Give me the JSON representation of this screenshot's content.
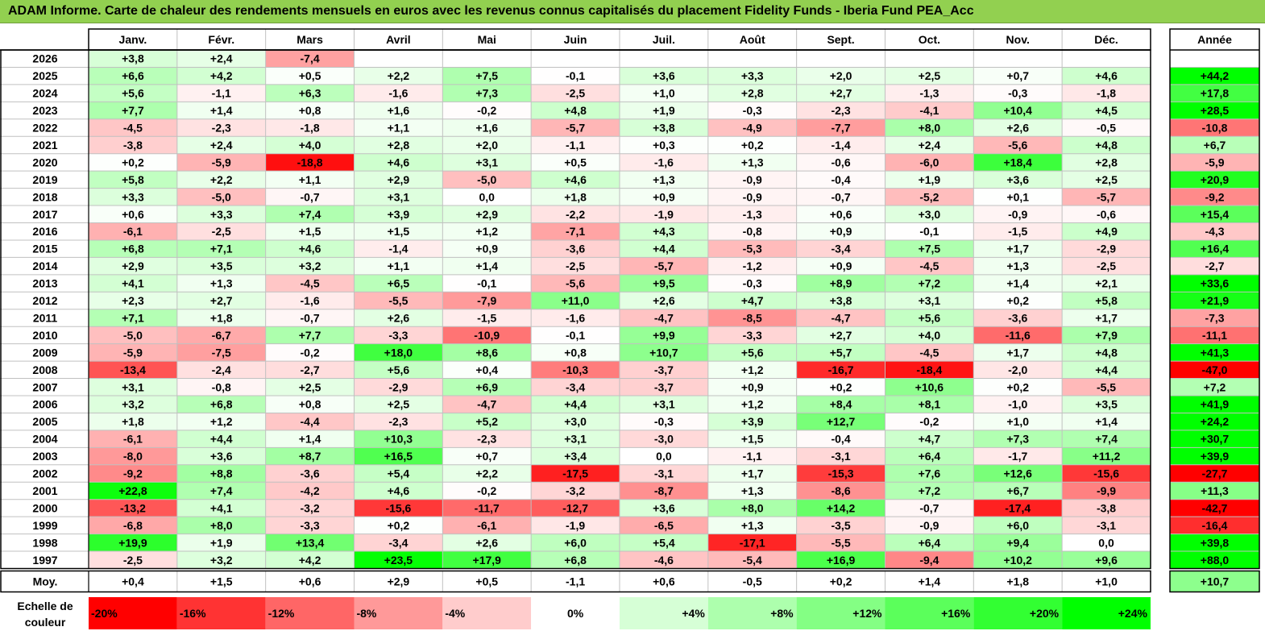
{
  "title": "ADAM Informe. Carte de chaleur des rendements mensuels en euros avec les revenus connus capitalisés du placement Fidelity Funds - Iberia Fund PEA_Acc",
  "chart_data": {
    "type": "heatmap",
    "columns": [
      "Janv.",
      "Févr.",
      "Mars",
      "Avril",
      "Mai",
      "Juin",
      "Juil.",
      "Août",
      "Sept.",
      "Oct.",
      "Nov.",
      "Déc."
    ],
    "annual_header": "Année",
    "rows": [
      {
        "year": "2026",
        "months": [
          "+3,8",
          "+2,4",
          "-7,4",
          "",
          "",
          "",
          "",
          "",
          "",
          "",
          "",
          ""
        ],
        "annual": ""
      },
      {
        "year": "2025",
        "months": [
          "+6,6",
          "+4,2",
          "+0,5",
          "+2,2",
          "+7,5",
          "-0,1",
          "+3,6",
          "+3,3",
          "+2,0",
          "+2,5",
          "+0,7",
          "+4,6"
        ],
        "annual": "+44,2"
      },
      {
        "year": "2024",
        "months": [
          "+5,6",
          "-1,1",
          "+6,3",
          "-1,6",
          "+7,3",
          "-2,5",
          "+1,0",
          "+2,8",
          "+2,7",
          "-1,3",
          "-0,3",
          "-1,8"
        ],
        "annual": "+17,8"
      },
      {
        "year": "2023",
        "months": [
          "+7,7",
          "+1,4",
          "+0,8",
          "+1,6",
          "-0,2",
          "+4,8",
          "+1,9",
          "-0,3",
          "-2,3",
          "-4,1",
          "+10,4",
          "+4,5"
        ],
        "annual": "+28,5"
      },
      {
        "year": "2022",
        "months": [
          "-4,5",
          "-2,3",
          "-1,8",
          "+1,1",
          "+1,6",
          "-5,7",
          "+3,8",
          "-4,9",
          "-7,7",
          "+8,0",
          "+2,6",
          "-0,5"
        ],
        "annual": "-10,8"
      },
      {
        "year": "2021",
        "months": [
          "-3,8",
          "+2,4",
          "+4,0",
          "+2,8",
          "+2,0",
          "-1,1",
          "+0,3",
          "+0,2",
          "-1,4",
          "+2,4",
          "-5,6",
          "+4,8"
        ],
        "annual": "+6,7"
      },
      {
        "year": "2020",
        "months": [
          "+0,2",
          "-5,9",
          "-18,8",
          "+4,6",
          "+3,1",
          "+0,5",
          "-1,6",
          "+1,3",
          "-0,6",
          "-6,0",
          "+18,4",
          "+2,8"
        ],
        "annual": "-5,9"
      },
      {
        "year": "2019",
        "months": [
          "+5,8",
          "+2,2",
          "+1,1",
          "+2,9",
          "-5,0",
          "+4,6",
          "+1,3",
          "-0,9",
          "-0,4",
          "+1,9",
          "+3,6",
          "+2,5"
        ],
        "annual": "+20,9"
      },
      {
        "year": "2018",
        "months": [
          "+3,3",
          "-5,0",
          "-0,7",
          "+3,1",
          "0,0",
          "+1,8",
          "+0,9",
          "-0,9",
          "-0,7",
          "-5,2",
          "+0,1",
          "-5,7"
        ],
        "annual": "-9,2"
      },
      {
        "year": "2017",
        "months": [
          "+0,6",
          "+3,3",
          "+7,4",
          "+3,9",
          "+2,9",
          "-2,2",
          "-1,9",
          "-1,3",
          "+0,6",
          "+3,0",
          "-0,9",
          "-0,6"
        ],
        "annual": "+15,4"
      },
      {
        "year": "2016",
        "months": [
          "-6,1",
          "-2,5",
          "+1,5",
          "+1,5",
          "+1,2",
          "-7,1",
          "+4,3",
          "-0,8",
          "+0,9",
          "-0,1",
          "-1,5",
          "+4,9"
        ],
        "annual": "-4,3"
      },
      {
        "year": "2015",
        "months": [
          "+6,8",
          "+7,1",
          "+4,6",
          "-1,4",
          "+0,9",
          "-3,6",
          "+4,4",
          "-5,3",
          "-3,4",
          "+7,5",
          "+1,7",
          "-2,9"
        ],
        "annual": "+16,4"
      },
      {
        "year": "2014",
        "months": [
          "+2,9",
          "+3,5",
          "+3,2",
          "+1,1",
          "+1,4",
          "-2,5",
          "-5,7",
          "-1,2",
          "+0,9",
          "-4,5",
          "+1,3",
          "-2,5"
        ],
        "annual": "-2,7"
      },
      {
        "year": "2013",
        "months": [
          "+4,1",
          "+1,3",
          "-4,5",
          "+6,5",
          "-0,1",
          "-5,6",
          "+9,5",
          "-0,3",
          "+8,9",
          "+7,2",
          "+1,4",
          "+2,1"
        ],
        "annual": "+33,6"
      },
      {
        "year": "2012",
        "months": [
          "+2,3",
          "+2,7",
          "-1,6",
          "-5,5",
          "-7,9",
          "+11,0",
          "+2,6",
          "+4,7",
          "+3,8",
          "+3,1",
          "+0,2",
          "+5,8"
        ],
        "annual": "+21,9"
      },
      {
        "year": "2011",
        "months": [
          "+7,1",
          "+1,8",
          "-0,7",
          "+2,6",
          "-1,5",
          "-1,6",
          "-4,7",
          "-8,5",
          "-4,7",
          "+5,6",
          "-3,6",
          "+1,7"
        ],
        "annual": "-7,3"
      },
      {
        "year": "2010",
        "months": [
          "-5,0",
          "-6,7",
          "+7,7",
          "-3,3",
          "-10,9",
          "-0,1",
          "+9,9",
          "-3,3",
          "+2,7",
          "+4,0",
          "-11,6",
          "+7,9"
        ],
        "annual": "-11,1"
      },
      {
        "year": "2009",
        "months": [
          "-5,9",
          "-7,5",
          "-0,2",
          "+18,0",
          "+8,6",
          "+0,8",
          "+10,7",
          "+5,6",
          "+5,7",
          "-4,5",
          "+1,7",
          "+4,8"
        ],
        "annual": "+41,3"
      },
      {
        "year": "2008",
        "months": [
          "-13,4",
          "-2,4",
          "-2,7",
          "+5,6",
          "+0,4",
          "-10,3",
          "-3,7",
          "+1,2",
          "-16,7",
          "-18,4",
          "-2,0",
          "+4,4"
        ],
        "annual": "-47,0"
      },
      {
        "year": "2007",
        "months": [
          "+3,1",
          "-0,8",
          "+2,5",
          "-2,9",
          "+6,9",
          "-3,4",
          "-3,7",
          "+0,9",
          "+0,2",
          "+10,6",
          "+0,2",
          "-5,5"
        ],
        "annual": "+7,2"
      },
      {
        "year": "2006",
        "months": [
          "+3,2",
          "+6,8",
          "+0,8",
          "+2,5",
          "-4,7",
          "+4,4",
          "+3,1",
          "+1,2",
          "+8,4",
          "+8,1",
          "-1,0",
          "+3,5"
        ],
        "annual": "+41,9"
      },
      {
        "year": "2005",
        "months": [
          "+1,8",
          "+1,2",
          "-4,4",
          "-2,3",
          "+5,2",
          "+3,0",
          "-0,3",
          "+3,9",
          "+12,7",
          "-0,2",
          "+1,0",
          "+1,4"
        ],
        "annual": "+24,2"
      },
      {
        "year": "2004",
        "months": [
          "-6,1",
          "+4,4",
          "+1,4",
          "+10,3",
          "-2,3",
          "+3,1",
          "-3,0",
          "+1,5",
          "-0,4",
          "+4,7",
          "+7,3",
          "+7,4"
        ],
        "annual": "+30,7"
      },
      {
        "year": "2003",
        "months": [
          "-8,0",
          "+3,6",
          "+8,7",
          "+16,5",
          "+0,7",
          "+3,4",
          "0,0",
          "-1,1",
          "-3,1",
          "+6,4",
          "-1,7",
          "+11,2"
        ],
        "annual": "+39,9"
      },
      {
        "year": "2002",
        "months": [
          "-9,2",
          "+8,8",
          "-3,6",
          "+5,4",
          "+2,2",
          "-17,5",
          "-3,1",
          "+1,7",
          "-15,3",
          "+7,6",
          "+12,6",
          "-15,6"
        ],
        "annual": "-27,7"
      },
      {
        "year": "2001",
        "months": [
          "+22,8",
          "+7,4",
          "-4,2",
          "+4,6",
          "-0,2",
          "-3,2",
          "-8,7",
          "+1,3",
          "-8,6",
          "+7,2",
          "+6,7",
          "-9,9"
        ],
        "annual": "+11,3"
      },
      {
        "year": "2000",
        "months": [
          "-13,2",
          "+4,1",
          "-3,2",
          "-15,6",
          "-11,7",
          "-12,7",
          "+3,6",
          "+8,0",
          "+14,2",
          "-0,7",
          "-17,4",
          "-3,8"
        ],
        "annual": "-42,7"
      },
      {
        "year": "1999",
        "months": [
          "-6,8",
          "+8,0",
          "-3,3",
          "+0,2",
          "-6,1",
          "-1,9",
          "-6,5",
          "+1,3",
          "-3,5",
          "-0,9",
          "+6,0",
          "-3,1"
        ],
        "annual": "-16,4"
      },
      {
        "year": "1998",
        "months": [
          "+19,9",
          "+1,9",
          "+13,4",
          "-3,4",
          "+2,6",
          "+6,0",
          "+5,4",
          "-17,1",
          "-5,5",
          "+6,4",
          "+9,4",
          "0,0"
        ],
        "annual": "+39,8"
      },
      {
        "year": "1997",
        "months": [
          "-2,5",
          "+3,2",
          "+4,2",
          "+23,5",
          "+17,9",
          "+6,8",
          "-4,6",
          "-5,4",
          "+16,9",
          "-9,4",
          "+10,2",
          "+9,6"
        ],
        "annual": "+88,0"
      }
    ],
    "average": {
      "label": "Moy.",
      "months": [
        "+0,4",
        "+1,5",
        "+0,6",
        "+2,9",
        "+0,5",
        "-1,1",
        "+0,6",
        "-0,5",
        "+0,2",
        "+1,4",
        "+1,8",
        "+1,0"
      ],
      "annual": "+10,7"
    },
    "scale": {
      "label_lines": [
        "Echelle de",
        "couleur"
      ],
      "steps": [
        {
          "label": "-20%",
          "value": -20,
          "align": "left",
          "color": "#ff0000"
        },
        {
          "label": "-16%",
          "value": -16,
          "align": "left",
          "color": "#ff3333"
        },
        {
          "label": "-12%",
          "value": -12,
          "align": "left",
          "color": "#ff6666"
        },
        {
          "label": "-8%",
          "value": -8,
          "align": "left",
          "color": "#ff9999"
        },
        {
          "label": "-4%",
          "value": -4,
          "align": "left",
          "color": "#ffcccc"
        },
        {
          "label": "0%",
          "value": 0,
          "align": "center",
          "color": "#ffffff"
        },
        {
          "label": "+4%",
          "value": 4,
          "align": "right",
          "color": "#d6ffd6"
        },
        {
          "label": "+8%",
          "value": 8,
          "align": "right",
          "color": "#adffad"
        },
        {
          "label": "+12%",
          "value": 12,
          "align": "right",
          "color": "#84ff84"
        },
        {
          "label": "+16%",
          "value": 16,
          "align": "right",
          "color": "#5bff5b"
        },
        {
          "label": "+20%",
          "value": 20,
          "align": "right",
          "color": "#32ff32"
        },
        {
          "label": "+24%",
          "value": 24,
          "align": "right",
          "color": "#00ff00"
        }
      ]
    },
    "colors": {
      "title_band": "#92d050",
      "negative_max": "#ff0000",
      "positive_max": "#00ff00",
      "neutral": "#ffffff"
    }
  }
}
